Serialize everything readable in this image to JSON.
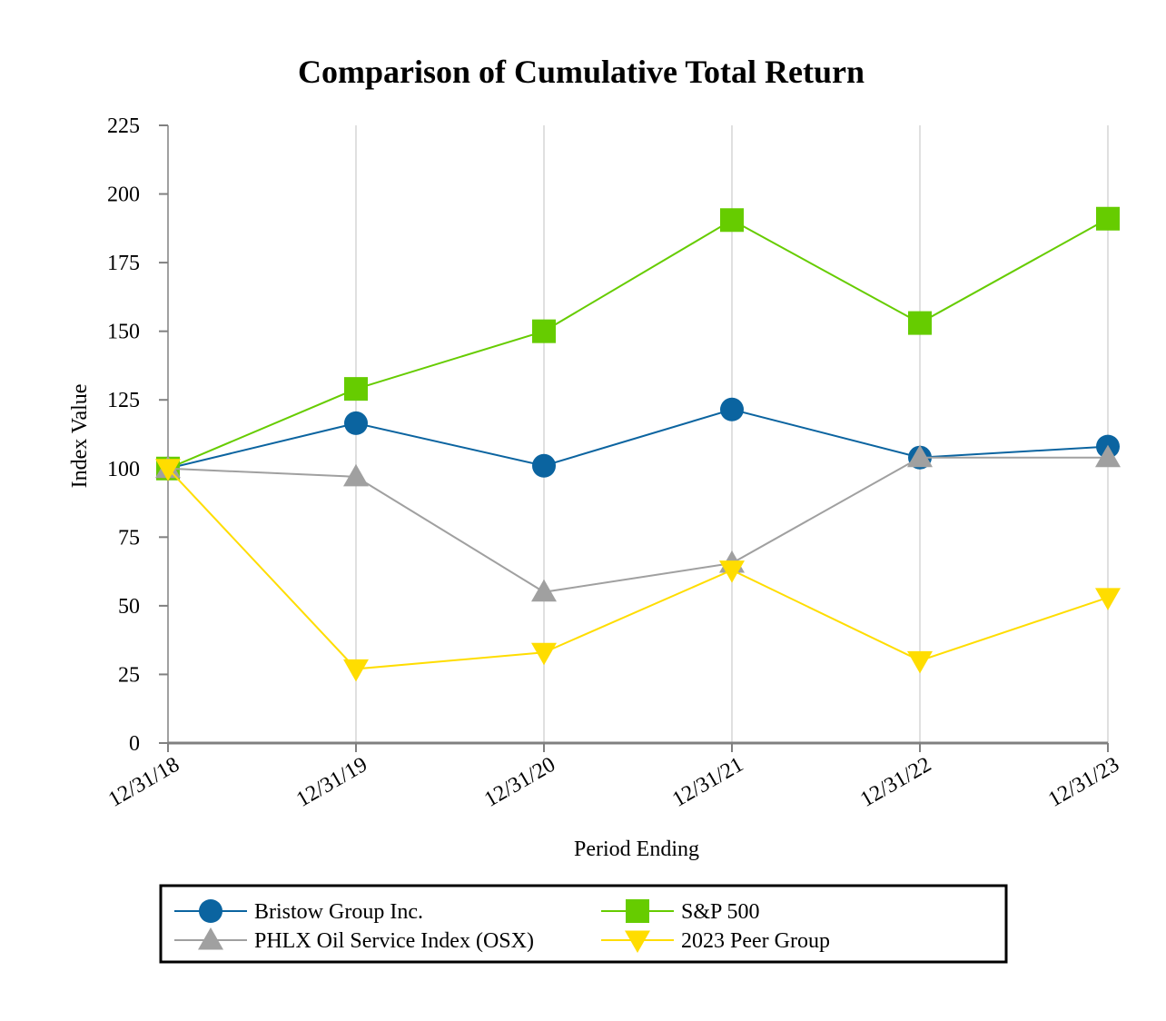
{
  "chart_data": {
    "type": "line",
    "title": "Comparison of Cumulative Total Return",
    "xlabel": "Period Ending",
    "ylabel": "Index Value",
    "ylim": [
      0,
      225
    ],
    "yticks": [
      0,
      25,
      50,
      75,
      100,
      125,
      150,
      175,
      200,
      225
    ],
    "grid": "vertical",
    "legend_position": "bottom",
    "categories": [
      "12/31/18",
      "12/31/19",
      "12/31/20",
      "12/31/21",
      "12/31/22",
      "12/31/23"
    ],
    "series": [
      {
        "name": "Bristow Group Inc.",
        "color": "#0b64a0",
        "marker": "circle",
        "values": [
          100,
          116.5,
          101,
          121.5,
          104,
          108
        ]
      },
      {
        "name": "S&P 500",
        "color": "#66cc00",
        "marker": "square",
        "values": [
          100,
          129,
          150,
          190.5,
          153,
          191
        ]
      },
      {
        "name": "PHLX Oil Service Index (OSX)",
        "color": "#a0a0a0",
        "marker": "triangle-up",
        "values": [
          100,
          97,
          55,
          65.5,
          104,
          104
        ]
      },
      {
        "name": "2023 Peer Group",
        "color": "#ffdd00",
        "marker": "triangle-down",
        "values": [
          100,
          27,
          33,
          63,
          30,
          53
        ]
      }
    ]
  }
}
